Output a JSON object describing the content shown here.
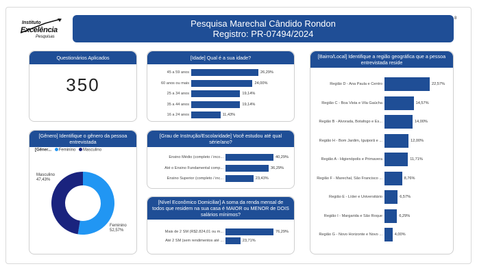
{
  "header": {
    "title": "Pesquisa Marechal Cândido Rondon",
    "subtitle": "Registro: PR-07494/2024",
    "page_number": "8"
  },
  "logo": {
    "line1": "Instituto",
    "line2": "Excelência",
    "line3": "Pesquisas"
  },
  "colors": {
    "navy": "#1f4e96",
    "dark_navy": "#1a237e",
    "light_blue": "#2196f3"
  },
  "questionarios": {
    "title": "Questionários Aplicados",
    "value": "350"
  },
  "genero": {
    "title": "[Gênero] Identifique o gênero da pessoa entrevistada",
    "legend_title": "[Gêner...",
    "legend_items": [
      "Feminino",
      "Masculino"
    ],
    "chart_data": {
      "type": "pie",
      "labels": [
        "Feminino",
        "Masculino"
      ],
      "values": [
        52.57,
        47.43
      ],
      "value_labels": [
        "52,57%",
        "47,43%"
      ]
    }
  },
  "idade": {
    "title": "[Idade] Qual é a sua idade?",
    "chart_data": {
      "type": "bar",
      "categories": [
        "45 a 59 anos",
        "60 anos ou mais",
        "25 a 34 anos",
        "35 a 44 anos",
        "16 a 24 anos"
      ],
      "values": [
        26.29,
        24.0,
        19.14,
        19.14,
        11.43
      ],
      "value_labels": [
        "26,29%",
        "24,00%",
        "19,14%",
        "19,14%",
        "11,43%"
      ]
    }
  },
  "escolaridade": {
    "title": "[Grau de Instrução/Escolaridade] Você estudou até qual série/ano?",
    "chart_data": {
      "type": "bar",
      "categories": [
        "Ensino Médio (completo / inco...",
        "Até o Ensino Fundamental comp...",
        "Ensino Superior (completo / inc..."
      ],
      "values": [
        40.29,
        36.29,
        23.43
      ],
      "value_labels": [
        "40,29%",
        "36,29%",
        "23,43%"
      ]
    }
  },
  "renda": {
    "title": "[Nível Econômico Domiciliar] A soma da renda mensal de todos que residem na sua casa é MAIOR ou MENOR de DOIS salários mínimos?",
    "chart_data": {
      "type": "bar",
      "categories": [
        "Mais de 2 SM (R$2.824,01 ou m...",
        "Até 2 SM (sem rendimentos até ..."
      ],
      "values": [
        76.29,
        23.71
      ],
      "value_labels": [
        "76,29%",
        "23,71%"
      ]
    }
  },
  "bairro": {
    "title": "[Bairro/Local] Identifique a região geográfica que a pessoa entrevistada reside",
    "chart_data": {
      "type": "bar",
      "categories": [
        "Região D - Ana Paula e Centro",
        "Região C - Boa Vista e Vila Gaúcha",
        "Região B - Alvorada, Botafogo e Es...",
        "Região H - Bom Jardim, Iguiporã e ...",
        "Região A - Higienópolis e Primavera",
        "Região F - Marechal, São Francisco ...",
        "Região E - Líder e Universitário",
        "Região I - Margarida e São Roque",
        "Região G - Novo Horizonte e Novo ..."
      ],
      "values": [
        22.57,
        14.57,
        14.0,
        12.0,
        11.71,
        8.76,
        6.57,
        6.29,
        4.0
      ],
      "value_labels": [
        "22,57%",
        "14,57%",
        "14,00%",
        "12,00%",
        "11,71%",
        "8,76%",
        "6,57%",
        "6,29%",
        "4,00%"
      ]
    }
  }
}
